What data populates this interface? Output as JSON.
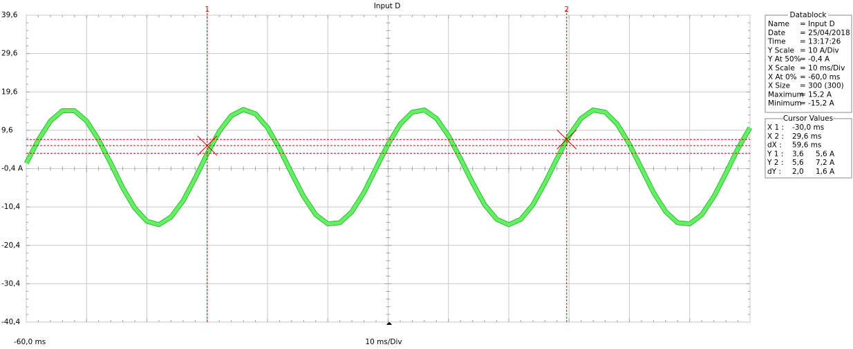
{
  "chart_data": {
    "type": "line",
    "title": "Input D",
    "x": [
      -60,
      -58,
      -56,
      -54,
      -52,
      -50,
      -48,
      -46,
      -44,
      -42,
      -40,
      -38,
      -36,
      -34,
      -32,
      -30,
      -28,
      -26,
      -24,
      -22,
      -20,
      -18,
      -16,
      -14,
      -12,
      -10,
      -8,
      -6,
      -4,
      -2,
      0,
      2,
      4,
      6,
      8,
      10,
      12,
      14,
      16,
      18,
      20,
      22,
      24,
      26,
      28,
      30,
      32,
      34,
      36,
      38,
      40,
      42,
      44,
      46,
      48,
      50,
      52,
      54,
      56,
      58,
      60
    ],
    "series": [
      {
        "color": "#66ee66",
        "values": [
          1.0,
          7.1,
          12.0,
          14.7,
          14.7,
          12.0,
          7.1,
          1.0,
          -5.4,
          -10.7,
          -14.1,
          -15.0,
          -13.0,
          -8.8,
          -2.9,
          3.5,
          9.3,
          13.4,
          15.0,
          13.9,
          10.3,
          4.8,
          -1.6,
          -7.7,
          -12.4,
          -14.8,
          -14.5,
          -11.6,
          -6.6,
          -0.3,
          6.0,
          11.2,
          14.3,
          14.9,
          12.7,
          8.2,
          2.2,
          -4.1,
          -9.8,
          -13.6,
          -15.0,
          -13.6,
          -9.8,
          -4.1,
          2.2,
          8.2,
          12.7,
          14.9,
          14.3,
          11.2,
          6.0,
          -0.3,
          -6.6,
          -11.6,
          -14.5,
          -14.8,
          -12.4,
          -7.7,
          -1.6,
          4.8,
          10.3
        ]
      }
    ],
    "xlim": [
      -60,
      60
    ],
    "xticks": [
      {
        "value": -60,
        "label": "-60,0 ms"
      },
      {
        "value": -50,
        "label": null
      },
      {
        "value": -40,
        "label": null
      },
      {
        "value": -30,
        "label": null
      },
      {
        "value": -20,
        "label": null
      },
      {
        "value": -10,
        "label": null
      },
      {
        "value": 0,
        "label": null
      },
      {
        "value": 10,
        "label": null
      },
      {
        "value": 20,
        "label": null
      },
      {
        "value": 30,
        "label": null
      },
      {
        "value": 40,
        "label": null
      },
      {
        "value": 50,
        "label": null
      },
      {
        "value": 60,
        "label": null
      }
    ],
    "x_label": "10 ms/Div",
    "ylim": [
      -40.4,
      39.6
    ],
    "yticks": [
      {
        "value": 39.6,
        "label": "39,6"
      },
      {
        "value": 29.6,
        "label": "29,6"
      },
      {
        "value": 19.6,
        "label": "19,6"
      },
      {
        "value": 9.6,
        "label": "9,6"
      },
      {
        "value": -0.4,
        "label": "-0,4 A"
      },
      {
        "value": -10.4,
        "label": "-10,4"
      },
      {
        "value": -20.4,
        "label": "-20,4"
      },
      {
        "value": -30.4,
        "label": "-30,4"
      },
      {
        "value": -40.4,
        "label": "-40,4"
      }
    ],
    "grid": true,
    "cursors": [
      {
        "label": "1",
        "x": -30.0,
        "y": 5.6
      },
      {
        "label": "2",
        "x": 29.6,
        "y": 7.2
      }
    ],
    "hlines": [
      3.6,
      5.6,
      7.2
    ]
  },
  "datablock": {
    "title": "Datablock",
    "rows": [
      [
        "Name",
        "= Input D"
      ],
      [
        "Date",
        "= 25/04/2018"
      ],
      [
        "Time",
        "= 13:17:26"
      ],
      [
        "Y Scale",
        "= 10   A/Div"
      ],
      [
        "Y At 50%",
        "= -0,4 A"
      ],
      [
        "X Scale",
        "= 10   ms/Div"
      ],
      [
        "X At 0%",
        "= -60,0 ms"
      ],
      [
        "X Size",
        "= 300 (300)"
      ],
      [
        "Maximum",
        "= 15,2 A"
      ],
      [
        "Minimum",
        "= -15,2 A"
      ]
    ]
  },
  "cursor_values": {
    "title": "Cursor Values",
    "rows": [
      [
        "X 1 :",
        "-30,0 ms"
      ],
      [
        "X 2 :",
        "29,6 ms"
      ],
      [
        "dX :",
        "59,6 ms"
      ],
      [
        "Y 1 :",
        "3,6",
        "5,6 A"
      ],
      [
        "Y 2 :",
        "5,6",
        "7,2 A"
      ],
      [
        "dY :",
        "2,0",
        "1,6 A"
      ]
    ]
  }
}
